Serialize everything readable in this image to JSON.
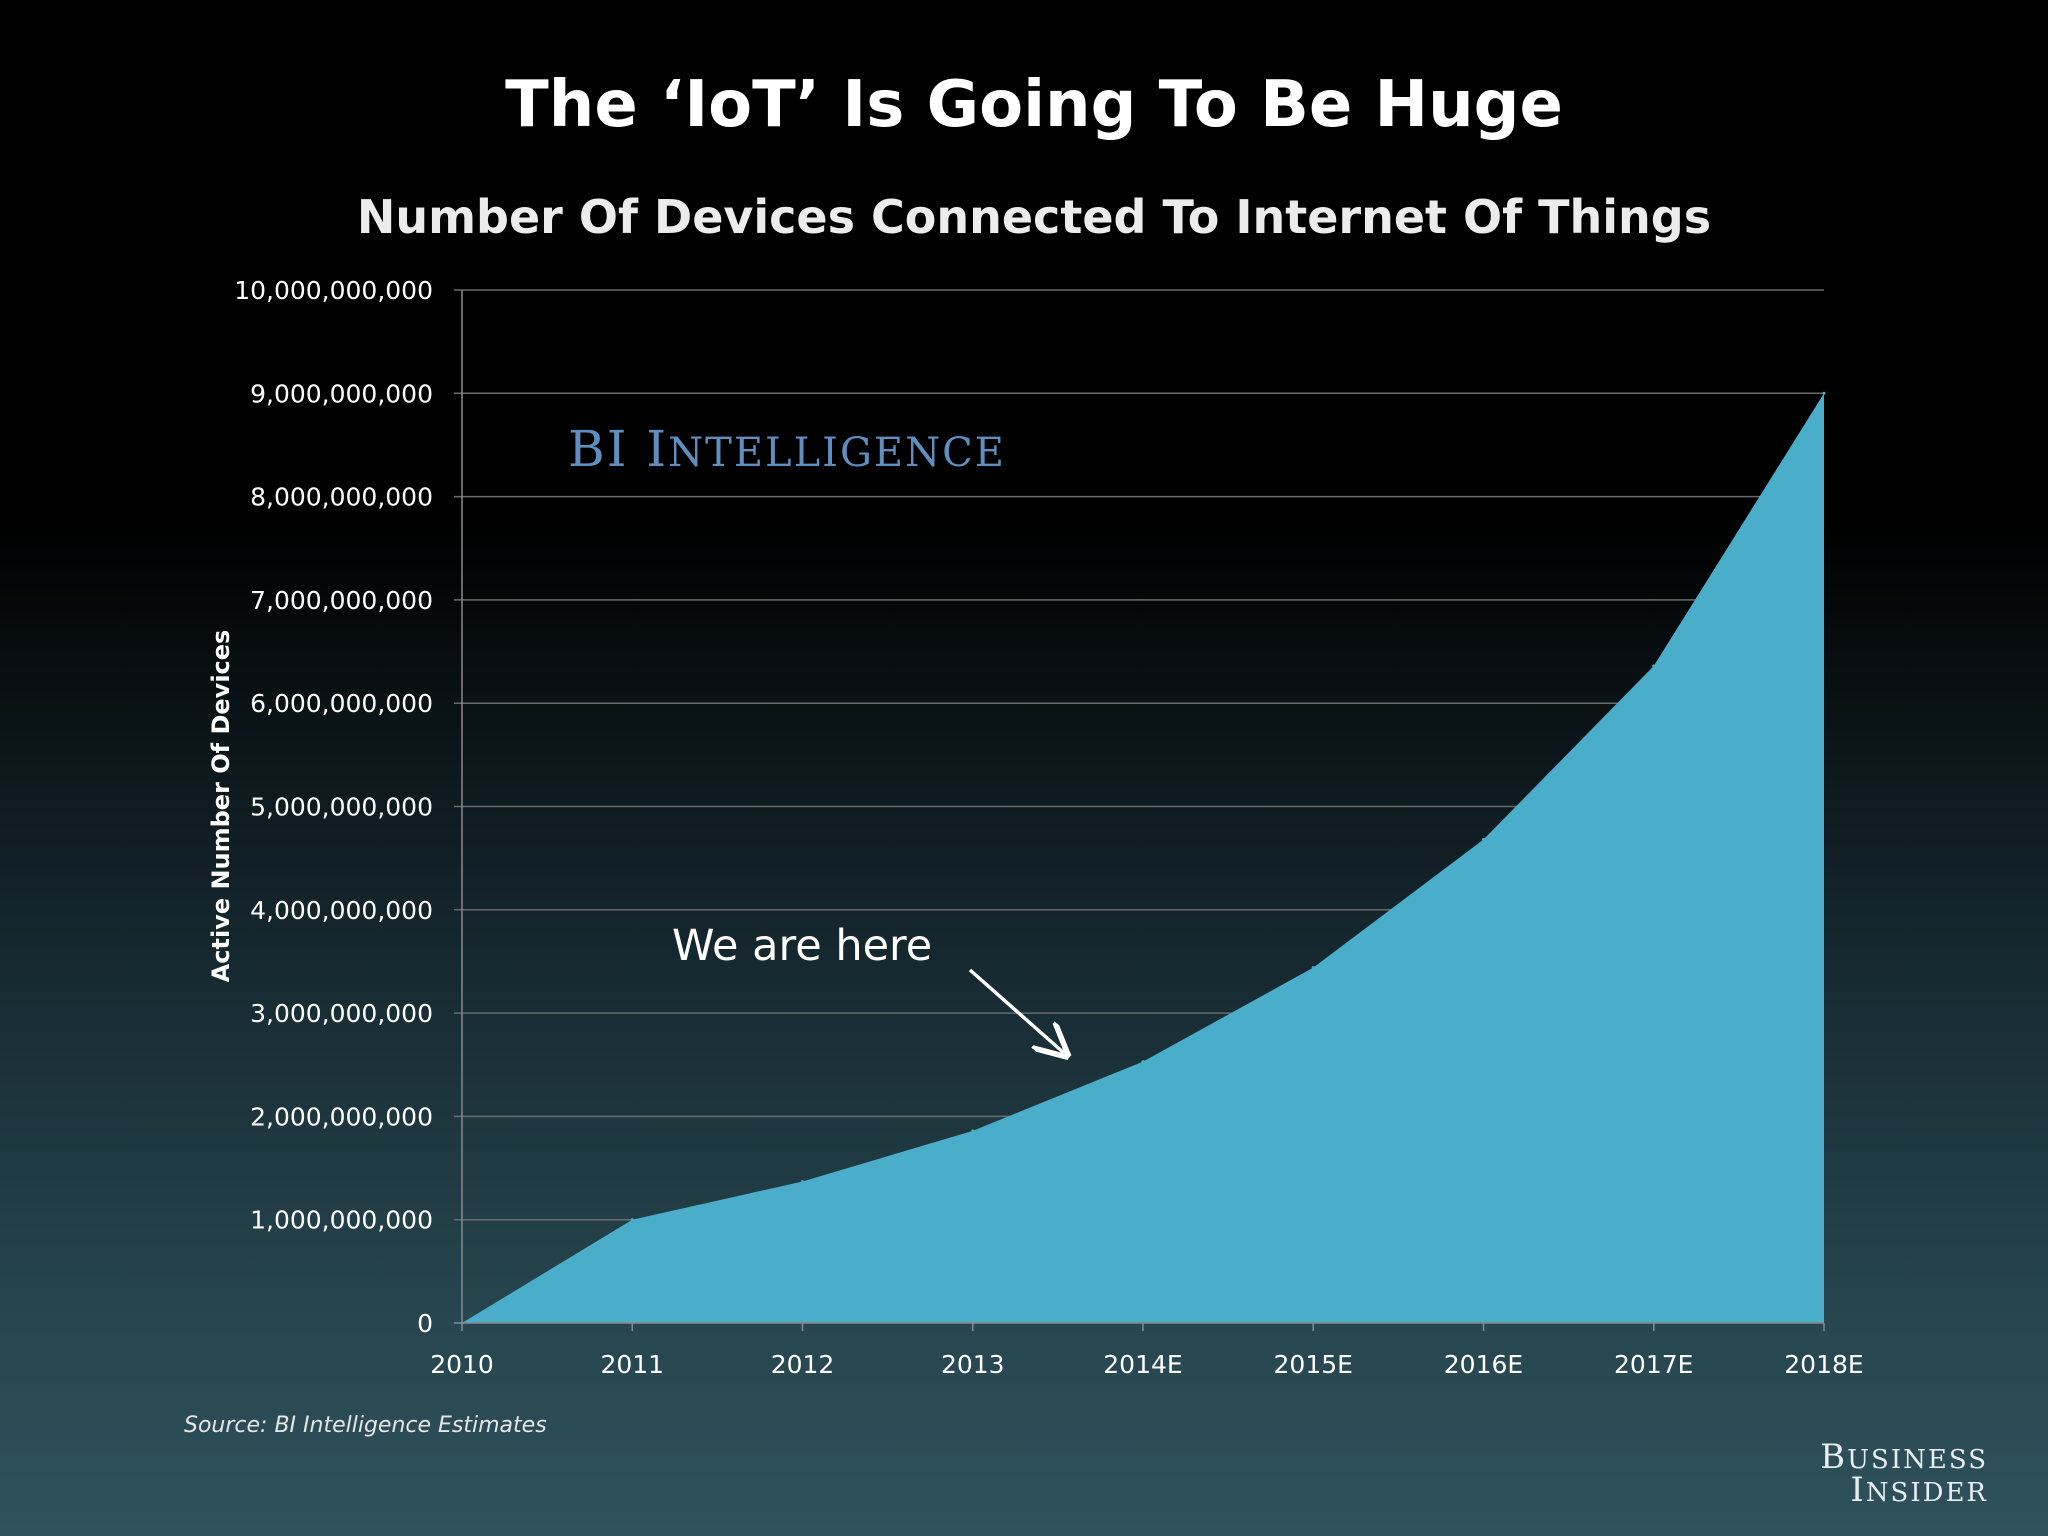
{
  "chart_data": {
    "type": "area",
    "title": "The ‘IoT’ Is Going To Be Huge",
    "subtitle": "Number Of Devices Connected To Internet Of Things",
    "ylabel": "Active Number Of Devices",
    "xlabel": "",
    "categories": [
      "2010",
      "2011",
      "2012",
      "2013",
      "2014E",
      "2015E",
      "2016E",
      "2017E",
      "2018E"
    ],
    "values": [
      0,
      1000000000,
      1370000000,
      1860000000,
      2530000000,
      3440000000,
      4680000000,
      6360000000,
      9000000000
    ],
    "ylim": [
      0,
      10000000000
    ],
    "yticks": [
      "0",
      "1,000,000,000",
      "2,000,000,000",
      "3,000,000,000",
      "4,000,000,000",
      "5,000,000,000",
      "6,000,000,000",
      "7,000,000,000",
      "8,000,000,000",
      "9,000,000,000",
      "10,000,000,000"
    ],
    "grid": true,
    "color": "#4aaecb",
    "annotation": {
      "text": "We are here",
      "between": [
        "2013",
        "2014E"
      ]
    }
  },
  "watermark": {
    "prefix": "BI ",
    "word_first": "I",
    "word_rest": "NTELLIGENCE"
  },
  "source": "Source: BI Intelligence Estimates",
  "brand": {
    "line1_first": "B",
    "line1_rest": "USINESS",
    "line2_first": "I",
    "line2_rest": "NSIDER"
  },
  "colors": {
    "area": "#4aaecb",
    "watermark": "#5f8fc0",
    "background_top": "#000000",
    "background_bottom": "#2f525c"
  }
}
